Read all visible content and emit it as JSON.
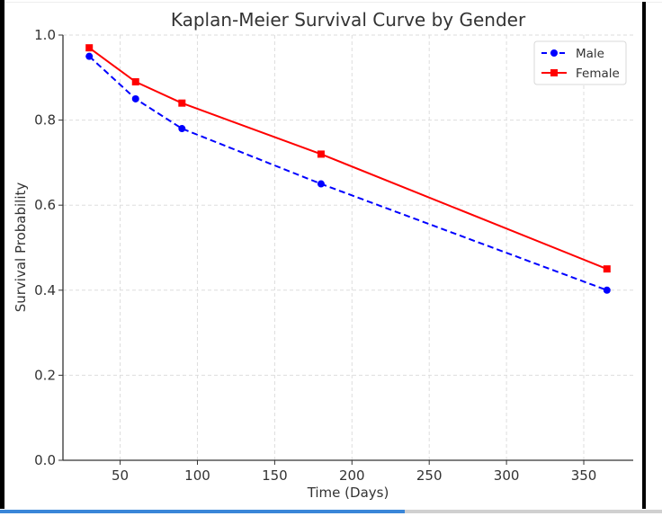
{
  "chart_data": {
    "type": "line",
    "title": "Kaplan-Meier Survival Curve by Gender",
    "xlabel": "Time (Days)",
    "ylabel": "Survival Probability",
    "x": [
      30,
      60,
      90,
      180,
      365
    ],
    "series": [
      {
        "name": "Male",
        "values": [
          0.95,
          0.85,
          0.78,
          0.65,
          0.4
        ],
        "color": "#0000ff",
        "linestyle": "dashed",
        "marker": "circle"
      },
      {
        "name": "Female",
        "values": [
          0.97,
          0.89,
          0.84,
          0.72,
          0.45
        ],
        "color": "#ff0000",
        "linestyle": "solid",
        "marker": "square"
      }
    ],
    "xlim": [
      13,
      382
    ],
    "ylim": [
      0.0,
      1.0
    ],
    "xticks": [
      50,
      100,
      150,
      200,
      250,
      300,
      350
    ],
    "xtick_labels": [
      "50",
      "100",
      "150",
      "200",
      "250",
      "300",
      "350"
    ],
    "yticks": [
      0.0,
      0.2,
      0.4,
      0.6,
      0.8,
      1.0
    ],
    "ytick_labels": [
      "0.0",
      "0.2",
      "0.4",
      "0.6",
      "0.8",
      "1.0"
    ],
    "grid": true,
    "legend_position": "top-right"
  }
}
